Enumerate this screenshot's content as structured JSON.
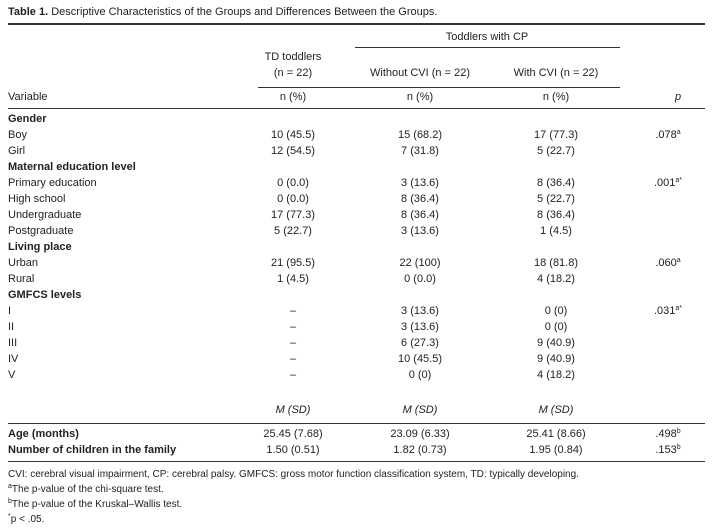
{
  "table": {
    "caption_label": "Table 1.",
    "caption": "Descriptive Characteristics of the Groups and Differences Between the Groups.",
    "group_header": "Toddlers with CP",
    "columns": [
      "TD toddlers",
      "Without CVI",
      "With CVI"
    ],
    "column_ns": [
      "(n = 22)",
      "(n = 22)",
      "(n = 22)"
    ],
    "stub_header": "Variable",
    "subheaders": [
      "n (%)",
      "n (%)",
      "n (%)"
    ],
    "p_header": "p",
    "sections": [
      {
        "title": "Gender",
        "rows": [
          {
            "label": "Boy",
            "cells": [
              "10 (45.5)",
              "15 (68.2)",
              "17 (77.3)"
            ],
            "p": ".078",
            "p_note": "a"
          },
          {
            "label": "Girl",
            "cells": [
              "12 (54.5)",
              "7 (31.8)",
              "5 (22.7)"
            ]
          }
        ]
      },
      {
        "title": "Maternal education level",
        "rows": [
          {
            "label": "Primary education",
            "cells": [
              "0 (0.0)",
              "3 (13.6)",
              "8 (36.4)"
            ],
            "p": ".001",
            "p_note": "a*"
          },
          {
            "label": "High school",
            "cells": [
              "0 (0.0)",
              "8 (36.4)",
              "5 (22.7)"
            ]
          },
          {
            "label": "Undergraduate",
            "cells": [
              "17 (77.3)",
              "8 (36.4)",
              "8 (36.4)"
            ]
          },
          {
            "label": "Postgraduate",
            "cells": [
              "5 (22.7)",
              "3 (13.6)",
              "1 (4.5)"
            ]
          }
        ]
      },
      {
        "title": "Living place",
        "rows": [
          {
            "label": "Urban",
            "cells": [
              "21 (95.5)",
              "22 (100)",
              "18 (81.8)"
            ],
            "p": ".060",
            "p_note": "a"
          },
          {
            "label": "Rural",
            "cells": [
              "1 (4.5)",
              "0 (0.0)",
              "4 (18.2)"
            ]
          }
        ]
      },
      {
        "title": "GMFCS levels",
        "rows": [
          {
            "label": "I",
            "cells": [
              "–",
              "3 (13.6)",
              "0 (0)"
            ],
            "p": ".031",
            "p_note": "a*"
          },
          {
            "label": "II",
            "cells": [
              "–",
              "3 (13.6)",
              "0 (0)"
            ]
          },
          {
            "label": "III",
            "cells": [
              "–",
              "6 (27.3)",
              "9 (40.9)"
            ]
          },
          {
            "label": "IV",
            "cells": [
              "–",
              "10 (45.5)",
              "9 (40.9)"
            ]
          },
          {
            "label": "V",
            "cells": [
              "–",
              "0 (0)",
              "4 (18.2)"
            ]
          }
        ]
      }
    ],
    "stat_subheaders": [
      "M (SD)",
      "M (SD)",
      "M (SD)"
    ],
    "stat_rows": [
      {
        "label": "Age (months)",
        "cells": [
          "25.45 (7.68)",
          "23.09 (6.33)",
          "25.41 (8.66)"
        ],
        "p": ".498",
        "p_note": "b"
      },
      {
        "label": "Number of children in the family",
        "cells": [
          "1.50 (0.51)",
          "1.82 (0.73)",
          "1.95 (0.84)"
        ],
        "p": ".153",
        "p_note": "b"
      }
    ],
    "notes": [
      {
        "text": "CVI: cerebral visual impairment, CP: cerebral palsy. GMFCS: gross motor function classification system, TD: typically developing."
      },
      {
        "mark": "a",
        "text": "The p-value of the chi-square test."
      },
      {
        "mark": "b",
        "text": "The p-value of the Kruskal–Wallis test."
      },
      {
        "mark": "*",
        "text": "p < .05."
      }
    ]
  }
}
